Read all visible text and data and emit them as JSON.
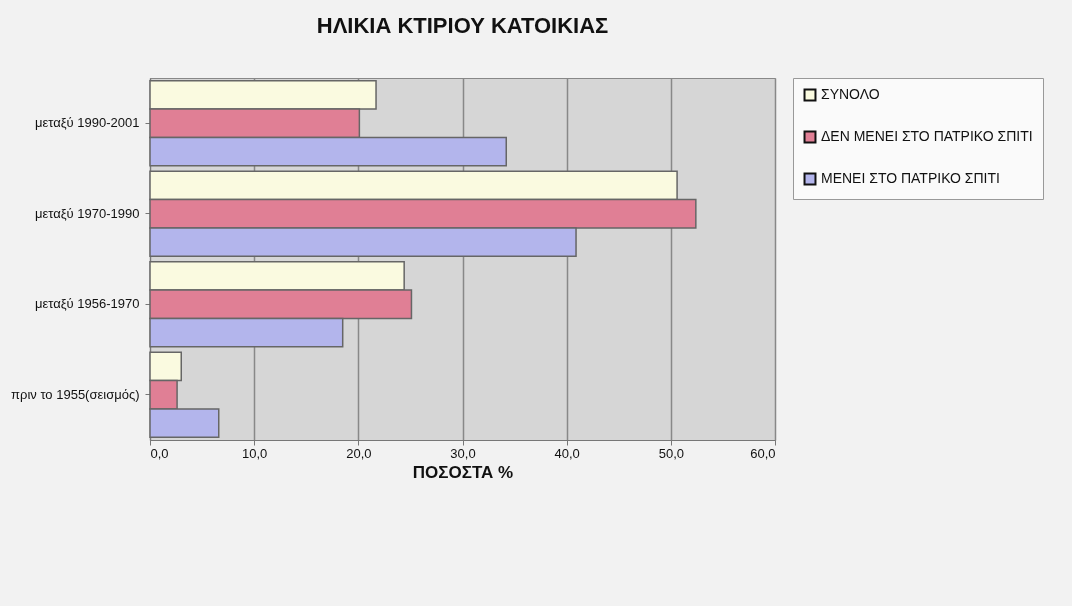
{
  "chart_data": {
    "type": "bar",
    "orientation": "horizontal",
    "title": "ΗΛΙΚΙΑ ΚΤΙΡΙΟΥ ΚΑΤΟΙΚΙΑΣ",
    "xlabel": "ΠΟΣΟΣΤΑ %",
    "categories": [
      "μεταξύ 1990-2001",
      "μεταξύ 1970-1990",
      "μεταξύ 1956-1970",
      "πριν το 1955(σεισμός)"
    ],
    "series": [
      {
        "name": "ΣΥΝΟΛΟ",
        "color": "#fafae0",
        "values": [
          21.7,
          50.6,
          24.4,
          3.0
        ]
      },
      {
        "name": "ΔΕΝ ΜΕΝΕΙ ΣΤΟ ΠΑΤΡΙΚΟ ΣΠΙΤΙ",
        "color": "#e07f95",
        "values": [
          20.1,
          52.4,
          25.1,
          2.6
        ]
      },
      {
        "name": "ΜΕΝΕΙ ΣΤΟ ΠΑΤΡΙΚΟ ΣΠΙΤΙ",
        "color": "#b3b5ec",
        "values": [
          34.2,
          40.9,
          18.5,
          6.6
        ]
      }
    ],
    "xlim": [
      0,
      60
    ],
    "xticks": [
      {
        "value": 0,
        "label": "0,0"
      },
      {
        "value": 10,
        "label": "10,0"
      },
      {
        "value": 20,
        "label": "20,0"
      },
      {
        "value": 30,
        "label": "30,0"
      },
      {
        "value": 40,
        "label": "40,0"
      },
      {
        "value": 50,
        "label": "50,0"
      },
      {
        "value": 60,
        "label": "60,0"
      }
    ],
    "grid": "x",
    "legend": "right"
  }
}
